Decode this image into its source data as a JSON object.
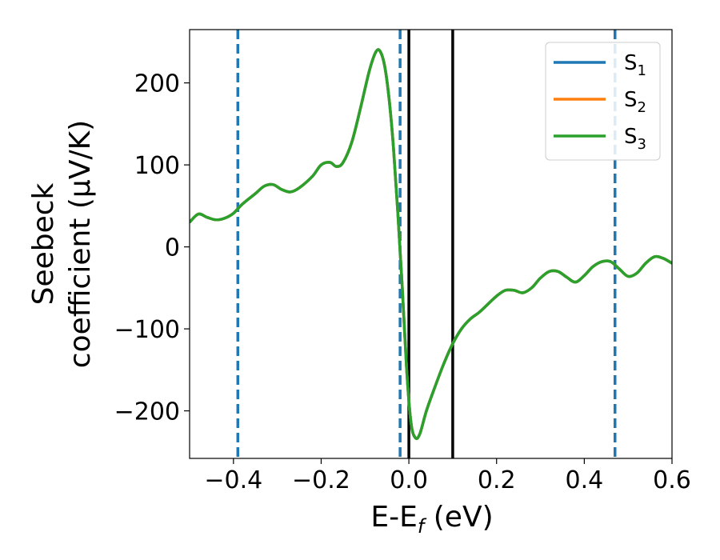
{
  "chart_data": {
    "type": "line",
    "xlabel": "E-E_f (eV)",
    "xlabel_parts": {
      "main": "E-E",
      "sub": "f",
      "tail": " (eV)"
    },
    "ylabel_line1": "Seebeck",
    "ylabel_line2": "coefficient  (μV/K)",
    "xlim": [
      -0.5,
      0.6
    ],
    "ylim": [
      -258,
      265
    ],
    "xticks": [
      -0.4,
      -0.2,
      0.0,
      0.2,
      0.4,
      0.6
    ],
    "xtick_labels": [
      "−0.4",
      "−0.2",
      "0.0",
      "0.2",
      "0.4",
      "0.6"
    ],
    "yticks": [
      -200,
      -100,
      0,
      100,
      200
    ],
    "ytick_labels": [
      "−200",
      "−100",
      "0",
      "100",
      "200"
    ],
    "grid": false,
    "legend_position": "top-right",
    "series": [
      {
        "name": "S",
        "sub": "1",
        "color": "#1f77b4",
        "values": [
          [
            -0.5,
            30
          ],
          [
            -0.48,
            40
          ],
          [
            -0.46,
            36
          ],
          [
            -0.44,
            33
          ],
          [
            -0.42,
            35
          ],
          [
            -0.4,
            41
          ],
          [
            -0.38,
            52
          ],
          [
            -0.35,
            65
          ],
          [
            -0.33,
            74
          ],
          [
            -0.31,
            76
          ],
          [
            -0.29,
            70
          ],
          [
            -0.27,
            67
          ],
          [
            -0.25,
            72
          ],
          [
            -0.22,
            86
          ],
          [
            -0.2,
            100
          ],
          [
            -0.18,
            103
          ],
          [
            -0.165,
            98
          ],
          [
            -0.15,
            103
          ],
          [
            -0.13,
            128
          ],
          [
            -0.11,
            170
          ],
          [
            -0.09,
            215
          ],
          [
            -0.075,
            238
          ],
          [
            -0.065,
            238
          ],
          [
            -0.055,
            220
          ],
          [
            -0.045,
            180
          ],
          [
            -0.035,
            120
          ],
          [
            -0.025,
            40
          ],
          [
            -0.015,
            -50
          ],
          [
            -0.005,
            -150
          ],
          [
            0.005,
            -215
          ],
          [
            0.015,
            -233
          ],
          [
            0.025,
            -228
          ],
          [
            0.04,
            -200
          ],
          [
            0.06,
            -170
          ],
          [
            0.08,
            -142
          ],
          [
            0.1,
            -118
          ],
          [
            0.12,
            -100
          ],
          [
            0.14,
            -88
          ],
          [
            0.16,
            -80
          ],
          [
            0.18,
            -70
          ],
          [
            0.2,
            -60
          ],
          [
            0.22,
            -53
          ],
          [
            0.24,
            -53
          ],
          [
            0.26,
            -56
          ],
          [
            0.28,
            -50
          ],
          [
            0.3,
            -38
          ],
          [
            0.32,
            -30
          ],
          [
            0.34,
            -30
          ],
          [
            0.36,
            -37
          ],
          [
            0.38,
            -43
          ],
          [
            0.4,
            -35
          ],
          [
            0.42,
            -24
          ],
          [
            0.44,
            -18
          ],
          [
            0.46,
            -18
          ],
          [
            0.48,
            -27
          ],
          [
            0.5,
            -36
          ],
          [
            0.52,
            -32
          ],
          [
            0.54,
            -20
          ],
          [
            0.56,
            -12
          ],
          [
            0.58,
            -14
          ],
          [
            0.6,
            -20
          ]
        ]
      },
      {
        "name": "S",
        "sub": "2",
        "color": "#ff7f0e",
        "values": [
          [
            -0.5,
            30
          ],
          [
            -0.48,
            40
          ],
          [
            -0.46,
            36
          ],
          [
            -0.44,
            33
          ],
          [
            -0.42,
            35
          ],
          [
            -0.4,
            41
          ],
          [
            -0.38,
            52
          ],
          [
            -0.35,
            65
          ],
          [
            -0.33,
            74
          ],
          [
            -0.31,
            76
          ],
          [
            -0.29,
            70
          ],
          [
            -0.27,
            67
          ],
          [
            -0.25,
            72
          ],
          [
            -0.22,
            86
          ],
          [
            -0.2,
            100
          ],
          [
            -0.18,
            103
          ],
          [
            -0.165,
            98
          ],
          [
            -0.15,
            103
          ],
          [
            -0.13,
            128
          ],
          [
            -0.11,
            170
          ],
          [
            -0.09,
            215
          ],
          [
            -0.075,
            238
          ],
          [
            -0.065,
            238
          ],
          [
            -0.055,
            220
          ],
          [
            -0.045,
            180
          ],
          [
            -0.035,
            120
          ],
          [
            -0.025,
            40
          ],
          [
            -0.015,
            -50
          ],
          [
            -0.005,
            -150
          ],
          [
            0.005,
            -215
          ],
          [
            0.015,
            -233
          ],
          [
            0.025,
            -228
          ],
          [
            0.04,
            -200
          ],
          [
            0.06,
            -170
          ],
          [
            0.08,
            -142
          ],
          [
            0.1,
            -118
          ],
          [
            0.12,
            -100
          ],
          [
            0.14,
            -88
          ],
          [
            0.16,
            -80
          ],
          [
            0.18,
            -70
          ],
          [
            0.2,
            -60
          ],
          [
            0.22,
            -53
          ],
          [
            0.24,
            -53
          ],
          [
            0.26,
            -56
          ],
          [
            0.28,
            -50
          ],
          [
            0.3,
            -38
          ],
          [
            0.32,
            -30
          ],
          [
            0.34,
            -30
          ],
          [
            0.36,
            -37
          ],
          [
            0.38,
            -43
          ],
          [
            0.4,
            -35
          ],
          [
            0.42,
            -24
          ],
          [
            0.44,
            -18
          ],
          [
            0.46,
            -18
          ],
          [
            0.48,
            -27
          ],
          [
            0.5,
            -36
          ],
          [
            0.52,
            -32
          ],
          [
            0.54,
            -20
          ],
          [
            0.56,
            -12
          ],
          [
            0.58,
            -14
          ],
          [
            0.6,
            -20
          ]
        ]
      },
      {
        "name": "S",
        "sub": "3",
        "color": "#2ca02c",
        "values": [
          [
            -0.5,
            30
          ],
          [
            -0.48,
            40
          ],
          [
            -0.46,
            36
          ],
          [
            -0.44,
            33
          ],
          [
            -0.42,
            35
          ],
          [
            -0.4,
            41
          ],
          [
            -0.38,
            52
          ],
          [
            -0.35,
            65
          ],
          [
            -0.33,
            74
          ],
          [
            -0.31,
            76
          ],
          [
            -0.29,
            70
          ],
          [
            -0.27,
            67
          ],
          [
            -0.25,
            72
          ],
          [
            -0.22,
            86
          ],
          [
            -0.2,
            100
          ],
          [
            -0.18,
            103
          ],
          [
            -0.165,
            98
          ],
          [
            -0.15,
            103
          ],
          [
            -0.13,
            128
          ],
          [
            -0.11,
            170
          ],
          [
            -0.09,
            215
          ],
          [
            -0.075,
            238
          ],
          [
            -0.065,
            238
          ],
          [
            -0.055,
            220
          ],
          [
            -0.045,
            180
          ],
          [
            -0.035,
            120
          ],
          [
            -0.025,
            40
          ],
          [
            -0.015,
            -50
          ],
          [
            -0.005,
            -150
          ],
          [
            0.005,
            -215
          ],
          [
            0.015,
            -233
          ],
          [
            0.025,
            -228
          ],
          [
            0.04,
            -200
          ],
          [
            0.06,
            -170
          ],
          [
            0.08,
            -142
          ],
          [
            0.1,
            -118
          ],
          [
            0.12,
            -100
          ],
          [
            0.14,
            -88
          ],
          [
            0.16,
            -80
          ],
          [
            0.18,
            -70
          ],
          [
            0.2,
            -60
          ],
          [
            0.22,
            -53
          ],
          [
            0.24,
            -53
          ],
          [
            0.26,
            -56
          ],
          [
            0.28,
            -50
          ],
          [
            0.3,
            -38
          ],
          [
            0.32,
            -30
          ],
          [
            0.34,
            -30
          ],
          [
            0.36,
            -37
          ],
          [
            0.38,
            -43
          ],
          [
            0.4,
            -35
          ],
          [
            0.42,
            -24
          ],
          [
            0.44,
            -18
          ],
          [
            0.46,
            -18
          ],
          [
            0.48,
            -27
          ],
          [
            0.5,
            -36
          ],
          [
            0.52,
            -32
          ],
          [
            0.54,
            -20
          ],
          [
            0.56,
            -12
          ],
          [
            0.58,
            -14
          ],
          [
            0.6,
            -20
          ]
        ]
      }
    ],
    "vlines_dashed": {
      "color": "#1f77b4",
      "x": [
        -0.39,
        -0.02,
        0.47
      ]
    },
    "vlines_solid": {
      "color": "#000000",
      "x": [
        0.0,
        0.1
      ]
    }
  }
}
